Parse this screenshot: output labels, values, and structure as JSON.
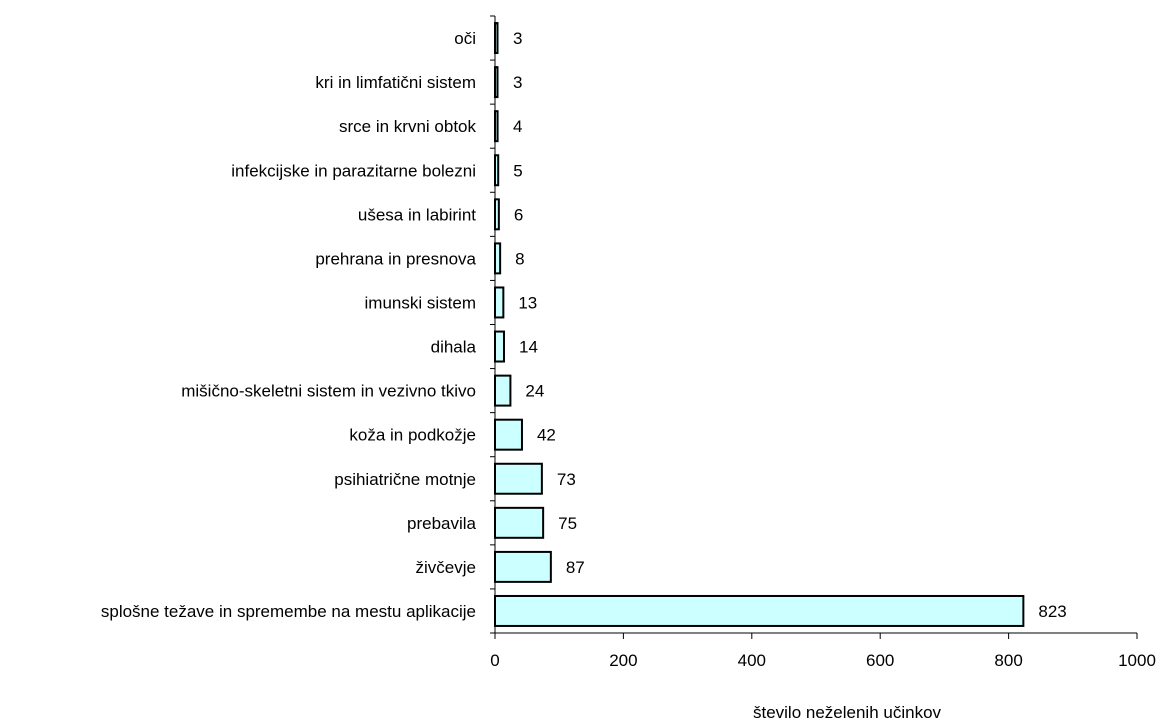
{
  "chart_data": {
    "type": "bar",
    "orientation": "horizontal",
    "categories": [
      "oči",
      "kri in limfatični sistem",
      "srce in krvni obtok",
      "infekcijske in parazitarne bolezni",
      "ušesa in labirint",
      "prehrana in presnova",
      "imunski sistem",
      "dihala",
      "mišično-skeletni sistem in vezivno tkivo",
      "koža in podkožje",
      "psihiatrične motnje",
      "prebavila",
      "živčevje",
      "splošne težave in spremembe na mestu aplikacije"
    ],
    "values": [
      3,
      3,
      4,
      5,
      6,
      8,
      13,
      14,
      24,
      42,
      73,
      75,
      87,
      823
    ],
    "xlabel": "število neželenih učinkov",
    "ylabel": "",
    "xlim": [
      0,
      1000
    ],
    "xticks": [
      0,
      200,
      400,
      600,
      800,
      1000
    ],
    "data_labels": true,
    "grid": false,
    "legend": "none",
    "colors": {
      "bar_fill": "#ccffff",
      "bar_stroke": "#000000",
      "axis": "#000000",
      "text": "#000000"
    }
  }
}
